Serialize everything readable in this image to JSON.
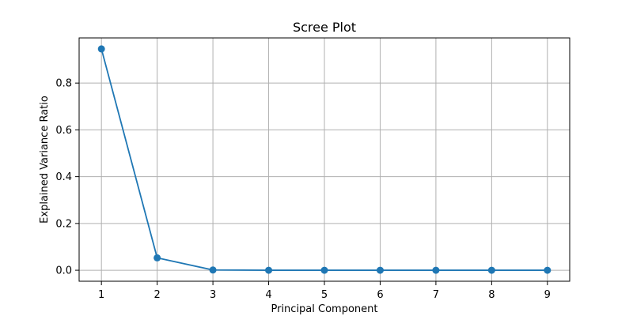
{
  "chart_data": {
    "type": "line",
    "title": "Scree Plot",
    "xlabel": "Principal Component",
    "ylabel": "Explained Variance Ratio",
    "x": [
      1,
      2,
      3,
      4,
      5,
      6,
      7,
      8,
      9
    ],
    "series": [
      {
        "name": "Explained Variance Ratio",
        "values": [
          0.946,
          0.053,
          0.001,
          0.0,
          0.0,
          0.0,
          0.0,
          0.0,
          0.0
        ],
        "marker": "circle",
        "color": "#1f77b4"
      }
    ],
    "xticks": [
      1,
      2,
      3,
      4,
      5,
      6,
      7,
      8,
      9
    ],
    "xtick_labels": [
      "1",
      "2",
      "3",
      "4",
      "5",
      "6",
      "7",
      "8",
      "9"
    ],
    "yticks": [
      0.0,
      0.2,
      0.4,
      0.6,
      0.8
    ],
    "ytick_labels": [
      "0.0",
      "0.2",
      "0.4",
      "0.6",
      "0.8"
    ],
    "xlim": [
      0.6,
      9.4
    ],
    "ylim": [
      -0.047,
      0.993
    ],
    "grid": true,
    "legend": "none"
  },
  "colors": {
    "line": "#1f77b4",
    "grid": "#b0b0b0",
    "axes": "#000000"
  }
}
